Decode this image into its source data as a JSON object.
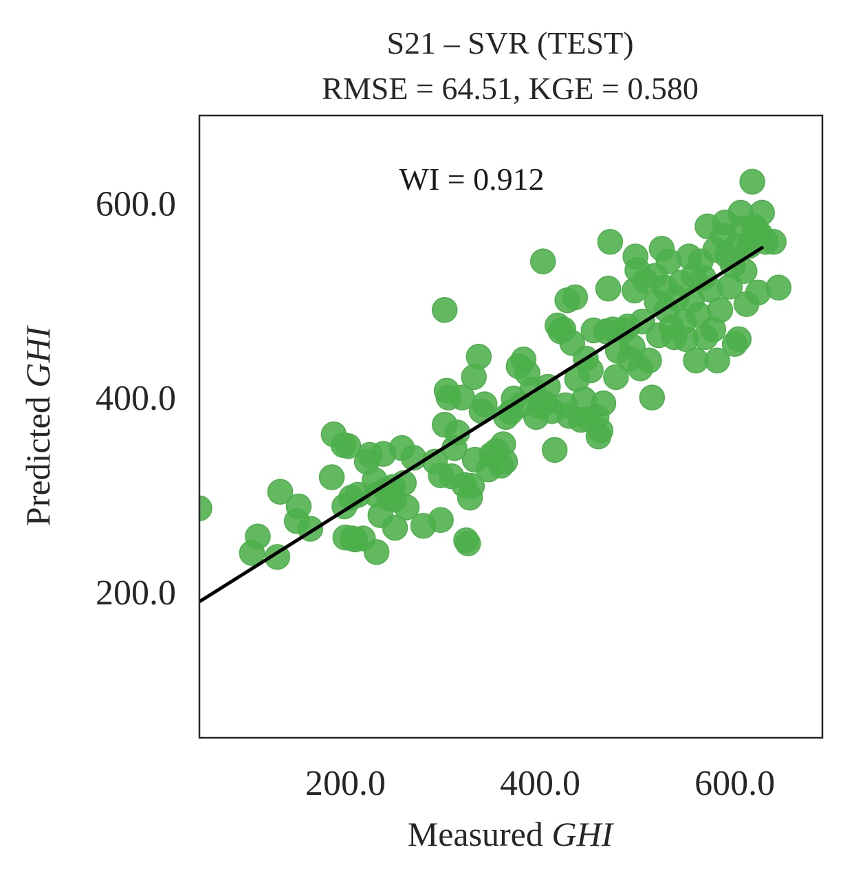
{
  "chart_data": {
    "type": "scatter",
    "title": "S21 – SVR (TEST)",
    "subtitle": "RMSE = 64.51, KGE = 0.580",
    "annotation": "WI = 0.912",
    "xlabel_prefix": "Measured ",
    "xlabel_var": "GHI",
    "ylabel_prefix": "Predicted ",
    "ylabel_var": "GHI",
    "xlim": [
      50,
      690
    ],
    "ylim": [
      50,
      690
    ],
    "xticks": [
      200,
      400,
      600
    ],
    "yticks": [
      200,
      400,
      600
    ],
    "tick_labels": [
      "200.0",
      "400.0",
      "600.0"
    ],
    "grid": false,
    "marker_color": "#4caf4a",
    "line_color": "#000000",
    "fit_line": {
      "x": [
        50,
        628
      ],
      "y": [
        190,
        554
      ]
    },
    "points": [
      [
        50,
        286
      ],
      [
        104,
        240
      ],
      [
        110,
        257
      ],
      [
        130,
        236
      ],
      [
        133,
        303
      ],
      [
        150,
        273
      ],
      [
        152,
        288
      ],
      [
        164,
        265
      ],
      [
        186,
        318
      ],
      [
        188,
        362
      ],
      [
        198,
        351
      ],
      [
        203,
        350
      ],
      [
        199,
        288
      ],
      [
        206,
        297
      ],
      [
        213,
        300
      ],
      [
        200,
        256
      ],
      [
        207,
        255
      ],
      [
        210,
        254
      ],
      [
        218,
        255
      ],
      [
        222,
        334
      ],
      [
        225,
        341
      ],
      [
        230,
        315
      ],
      [
        232,
        300
      ],
      [
        232,
        241
      ],
      [
        236,
        279
      ],
      [
        239,
        342
      ],
      [
        242,
        305
      ],
      [
        245,
        296
      ],
      [
        249,
        308
      ],
      [
        251,
        266
      ],
      [
        250,
        295
      ],
      [
        258,
        348
      ],
      [
        260,
        312
      ],
      [
        263,
        287
      ],
      [
        270,
        338
      ],
      [
        280,
        268
      ],
      [
        292,
        334
      ],
      [
        298,
        274
      ],
      [
        298,
        320
      ],
      [
        302,
        372
      ],
      [
        304,
        407
      ],
      [
        302,
        490
      ],
      [
        306,
        400
      ],
      [
        309,
        319
      ],
      [
        312,
        348
      ],
      [
        315,
        364
      ],
      [
        320,
        400
      ],
      [
        322,
        310
      ],
      [
        324,
        253
      ],
      [
        326,
        250
      ],
      [
        328,
        297
      ],
      [
        330,
        309
      ],
      [
        333,
        336
      ],
      [
        332,
        421
      ],
      [
        337,
        442
      ],
      [
        340,
        386
      ],
      [
        343,
        393
      ],
      [
        347,
        326
      ],
      [
        350,
        341
      ],
      [
        355,
        345
      ],
      [
        360,
        330
      ],
      [
        362,
        352
      ],
      [
        364,
        334
      ],
      [
        365,
        380
      ],
      [
        370,
        385
      ],
      [
        373,
        399
      ],
      [
        378,
        432
      ],
      [
        380,
        392
      ],
      [
        383,
        439
      ],
      [
        387,
        425
      ],
      [
        392,
        408
      ],
      [
        396,
        380
      ],
      [
        400,
        391
      ],
      [
        403,
        540
      ],
      [
        405,
        394
      ],
      [
        408,
        411
      ],
      [
        412,
        386
      ],
      [
        415,
        346
      ],
      [
        418,
        474
      ],
      [
        421,
        468
      ],
      [
        424,
        470
      ],
      [
        426,
        392
      ],
      [
        428,
        500
      ],
      [
        430,
        381
      ],
      [
        433,
        456
      ],
      [
        436,
        503
      ],
      [
        438,
        419
      ],
      [
        442,
        377
      ],
      [
        445,
        398
      ],
      [
        447,
        440
      ],
      [
        450,
        378
      ],
      [
        452,
        428
      ],
      [
        455,
        469
      ],
      [
        458,
        380
      ],
      [
        460,
        360
      ],
      [
        462,
        366
      ],
      [
        465,
        394
      ],
      [
        468,
        468
      ],
      [
        470,
        512
      ],
      [
        472,
        560
      ],
      [
        475,
        470
      ],
      [
        478,
        421
      ],
      [
        480,
        448
      ],
      [
        485,
        469
      ],
      [
        490,
        473
      ],
      [
        492,
        440
      ],
      [
        495,
        452
      ],
      [
        497,
        510
      ],
      [
        498,
        545
      ],
      [
        500,
        531
      ],
      [
        503,
        430
      ],
      [
        505,
        478
      ],
      [
        508,
        520
      ],
      [
        512,
        438
      ],
      [
        515,
        400
      ],
      [
        518,
        525
      ],
      [
        520,
        498
      ],
      [
        522,
        464
      ],
      [
        525,
        553
      ],
      [
        528,
        513
      ],
      [
        530,
        490
      ],
      [
        532,
        540
      ],
      [
        535,
        472
      ],
      [
        538,
        462
      ],
      [
        540,
        502
      ],
      [
        545,
        518
      ],
      [
        548,
        478
      ],
      [
        550,
        460
      ],
      [
        553,
        545
      ],
      [
        556,
        500
      ],
      [
        558,
        526
      ],
      [
        560,
        438
      ],
      [
        563,
        485
      ],
      [
        565,
        540
      ],
      [
        568,
        523
      ],
      [
        570,
        462
      ],
      [
        572,
        576
      ],
      [
        575,
        511
      ],
      [
        578,
        470
      ],
      [
        580,
        552
      ],
      [
        582,
        438
      ],
      [
        585,
        490
      ],
      [
        588,
        566
      ],
      [
        590,
        580
      ],
      [
        592,
        546
      ],
      [
        595,
        514
      ],
      [
        598,
        536
      ],
      [
        600,
        455
      ],
      [
        602,
        556
      ],
      [
        604,
        460
      ],
      [
        606,
        590
      ],
      [
        608,
        574
      ],
      [
        610,
        530
      ],
      [
        612,
        496
      ],
      [
        615,
        556
      ],
      [
        617,
        560
      ],
      [
        618,
        622
      ],
      [
        620,
        576
      ],
      [
        622,
        572
      ],
      [
        624,
        508
      ],
      [
        626,
        568
      ],
      [
        628,
        590
      ],
      [
        632,
        560
      ],
      [
        640,
        560
      ],
      [
        645,
        513
      ]
    ]
  }
}
